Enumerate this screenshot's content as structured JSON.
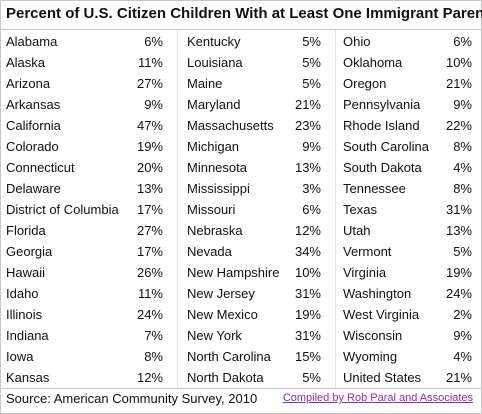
{
  "header": {
    "title": "Percent of U.S. Citizen Children With at Least One Immigrant Parent"
  },
  "table": {
    "columns": [
      {
        "rows": [
          [
            "Alabama",
            "6%"
          ],
          [
            "Alaska",
            "11%"
          ],
          [
            "Arizona",
            "27%"
          ],
          [
            "Arkansas",
            "9%"
          ],
          [
            "California",
            "47%"
          ],
          [
            "Colorado",
            "19%"
          ],
          [
            "Connecticut",
            "20%"
          ],
          [
            "Delaware",
            "13%"
          ],
          [
            "District of Columbia",
            "17%"
          ],
          [
            "Florida",
            "27%"
          ],
          [
            "Georgia",
            "17%"
          ],
          [
            "Hawaii",
            "26%"
          ],
          [
            "Idaho",
            "11%"
          ],
          [
            "Illinois",
            "24%"
          ],
          [
            "Indiana",
            "7%"
          ],
          [
            "Iowa",
            "8%"
          ],
          [
            "Kansas",
            "12%"
          ]
        ]
      },
      {
        "rows": [
          [
            "Kentucky",
            "5%"
          ],
          [
            "Louisiana",
            "5%"
          ],
          [
            "Maine",
            "5%"
          ],
          [
            "Maryland",
            "21%"
          ],
          [
            "Massachusetts",
            "23%"
          ],
          [
            "Michigan",
            "9%"
          ],
          [
            "Minnesota",
            "13%"
          ],
          [
            "Mississippi",
            "3%"
          ],
          [
            "Missouri",
            "6%"
          ],
          [
            "Nebraska",
            "12%"
          ],
          [
            "Nevada",
            "34%"
          ],
          [
            "New Hampshire",
            "10%"
          ],
          [
            "New Jersey",
            "31%"
          ],
          [
            "New Mexico",
            "19%"
          ],
          [
            "New York",
            "31%"
          ],
          [
            "North Carolina",
            "15%"
          ],
          [
            "North Dakota",
            "5%"
          ]
        ]
      },
      {
        "rows": [
          [
            "Ohio",
            "6%"
          ],
          [
            "Oklahoma",
            "10%"
          ],
          [
            "Oregon",
            "21%"
          ],
          [
            "Pennsylvania",
            "9%"
          ],
          [
            "Rhode Island",
            "22%"
          ],
          [
            "South Carolina",
            "8%"
          ],
          [
            "South Dakota",
            "4%"
          ],
          [
            "Tennessee",
            "8%"
          ],
          [
            "Texas",
            "31%"
          ],
          [
            "Utah",
            "13%"
          ],
          [
            "Vermont",
            "5%"
          ],
          [
            "Virginia",
            "19%"
          ],
          [
            "Washington",
            "24%"
          ],
          [
            "West Virginia",
            "2%"
          ],
          [
            "Wisconsin",
            "9%"
          ],
          [
            "Wyoming",
            "4%"
          ],
          [
            "United States",
            "21%"
          ]
        ]
      }
    ]
  },
  "footer": {
    "source": "Source: American Community Survey, 2010",
    "credit": "Compiled by Rob Paral and Associates"
  }
}
